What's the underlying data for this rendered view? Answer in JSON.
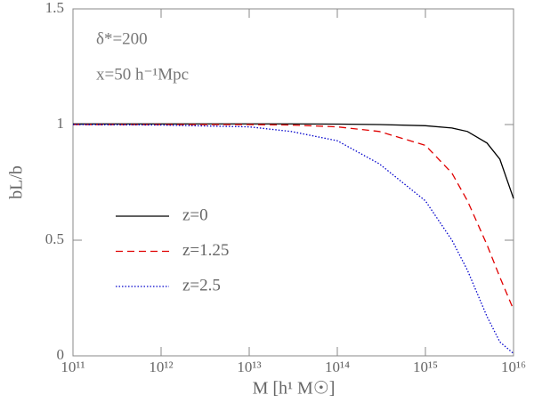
{
  "chart_data": {
    "type": "line",
    "xlabel": "M [h¹ M☉]",
    "ylabel": "bL/b",
    "annotations": [
      "δ*=200",
      "x=50 h⁻¹Mpc"
    ],
    "xscale": "log",
    "x": [
      100000000000.0,
      1000000000000.0,
      10000000000000.0,
      30000000000000.0,
      100000000000000.0,
      300000000000000.0,
      1000000000000000.0,
      2000000000000000.0,
      3000000000000000.0,
      5000000000000000.0,
      7000000000000000.0,
      1e+16
    ],
    "xlim": [
      100000000000.0,
      1e+16
    ],
    "xticks": [
      {
        "value": 100000000000.0,
        "label": "10¹¹"
      },
      {
        "value": 1000000000000.0,
        "label": "10¹²"
      },
      {
        "value": 10000000000000.0,
        "label": "10¹³"
      },
      {
        "value": 100000000000000.0,
        "label": "10¹⁴"
      },
      {
        "value": 1000000000000000.0,
        "label": "10¹⁵"
      },
      {
        "value": 1e+16,
        "label": "10¹⁶"
      }
    ],
    "ylim": [
      0,
      1.5
    ],
    "yticks": [
      0,
      0.5,
      1,
      1.5
    ],
    "series": [
      {
        "name": "z=0",
        "color": "#000000",
        "dash": "solid",
        "values": [
          1.003,
          1.003,
          1.003,
          1.003,
          1.002,
          1.0,
          0.995,
          0.985,
          0.97,
          0.92,
          0.85,
          0.68
        ]
      },
      {
        "name": "z=1.25",
        "color": "#e00000",
        "dash": "dashed",
        "values": [
          1.0,
          1.0,
          1.0,
          0.998,
          0.99,
          0.97,
          0.91,
          0.79,
          0.67,
          0.48,
          0.34,
          0.2
        ]
      },
      {
        "name": "z=2.5",
        "color": "#0000cc",
        "dash": "dotted",
        "values": [
          1.0,
          0.998,
          0.99,
          0.97,
          0.93,
          0.83,
          0.67,
          0.5,
          0.37,
          0.17,
          0.06,
          0.01
        ]
      }
    ]
  }
}
